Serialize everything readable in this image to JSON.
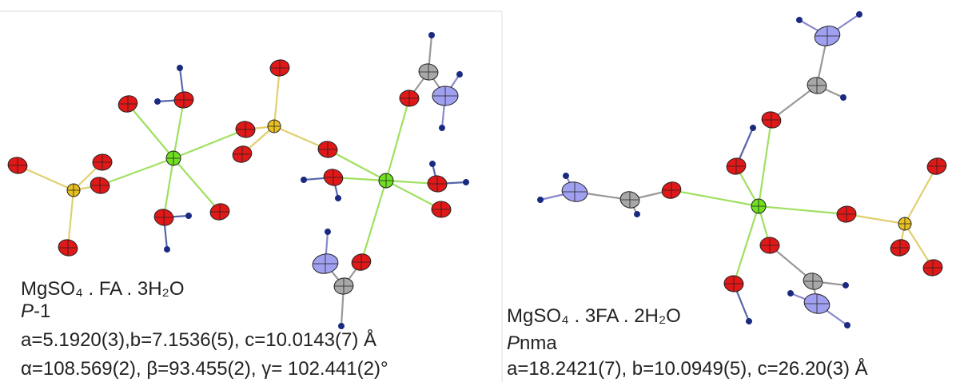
{
  "panels": [
    {
      "formula": "MgSO₄ . FA . 3H₂O",
      "space_group": {
        "italic": "P",
        "rest": "-1"
      },
      "cell_lengths": "a=5.1920(3),b=7.1536(5), c=10.0143(7) Å",
      "cell_angles": "α=108.569(2), β=93.455(2), γ= 102.441(2)°"
    },
    {
      "formula": "MgSO₄ . 3FA . 2H₂O",
      "space_group": {
        "italic": "P",
        "rest": "nma"
      },
      "cell_lengths": "a=18.2421(7), b=10.0949(5), c=26.20(3) Å"
    }
  ]
}
